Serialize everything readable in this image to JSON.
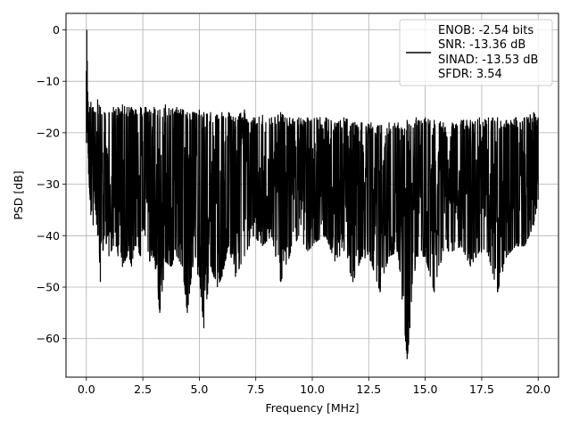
{
  "chart_data": {
    "type": "line",
    "title": "",
    "xlabel": "Frequency [MHz]",
    "ylabel": "PSD [dB]",
    "xlim": [
      -0.9,
      20.9
    ],
    "ylim": [
      -67.5,
      3.2
    ],
    "xticks": [
      0.0,
      2.5,
      5.0,
      7.5,
      10.0,
      12.5,
      15.0,
      17.5,
      20.0
    ],
    "xtick_labels": [
      "0.0",
      "2.5",
      "5.0",
      "7.5",
      "10.0",
      "12.5",
      "15.0",
      "17.5",
      "20.0"
    ],
    "yticks": [
      0,
      -10,
      -20,
      -30,
      -40,
      -50,
      -60
    ],
    "ytick_labels": [
      "0",
      "−10",
      "−20",
      "−30",
      "−40",
      "−50",
      "−60"
    ],
    "grid": true,
    "legend_position": "top-right",
    "series": [
      {
        "color": "#000000",
        "legend_lines": [
          "ENOB: -2.54 bits",
          "SNR: -13.36 dB",
          "SINAD: -13.53 dB",
          "SFDR: 3.54"
        ],
        "x": [
          0.0,
          0.02,
          0.04,
          0.06,
          0.08,
          0.1,
          0.15,
          0.2,
          0.3,
          0.4,
          0.5,
          0.62,
          0.8,
          1.0,
          1.2,
          1.4,
          1.6,
          1.8,
          2.0,
          2.2,
          2.4,
          2.6,
          2.8,
          3.0,
          3.25,
          3.5,
          3.75,
          4.0,
          4.25,
          4.47,
          4.7,
          5.0,
          5.2,
          5.5,
          5.8,
          6.0,
          6.3,
          6.6,
          7.0,
          7.4,
          7.8,
          8.2,
          8.6,
          9.0,
          9.4,
          9.8,
          10.2,
          10.6,
          11.0,
          11.4,
          11.8,
          12.2,
          12.6,
          13.0,
          13.4,
          13.8,
          14.2,
          14.6,
          15.0,
          15.4,
          15.8,
          16.2,
          16.6,
          17.0,
          17.4,
          17.8,
          18.2,
          18.6,
          19.0,
          19.4,
          19.8,
          20.0
        ],
        "upper": [
          -8,
          0,
          -6,
          -12,
          -14,
          -16,
          -15,
          -14,
          -15,
          -16,
          -13.5,
          -15,
          -16,
          -16,
          -15,
          -15,
          -14.5,
          -15,
          -15,
          -15.5,
          -15,
          -15,
          -15.5,
          -15,
          -15.5,
          -14.5,
          -15.5,
          -15,
          -15.5,
          -16,
          -16,
          -15.5,
          -16,
          -16,
          -16.5,
          -16,
          -16,
          -17,
          -15.5,
          -17,
          -16.5,
          -17,
          -16,
          -17,
          -17,
          -17,
          -17,
          -17,
          -18,
          -17,
          -18,
          -18,
          -18,
          -18.5,
          -18,
          -18,
          -17.5,
          -17,
          -17,
          -17.5,
          -18,
          -18,
          -17.5,
          -17.5,
          -17,
          -17,
          -17,
          -17.5,
          -17,
          -17,
          -16,
          -17
        ],
        "lower": [
          -22,
          -20,
          -18,
          -22,
          -24,
          -28,
          -32,
          -36,
          -38,
          -35,
          -40,
          -49,
          -40,
          -44,
          -42,
          -44,
          -46,
          -44,
          -46,
          -42,
          -44,
          -40,
          -45,
          -44,
          -55,
          -45,
          -46,
          -44,
          -46,
          -55,
          -46,
          -48,
          -58,
          -46,
          -50,
          -48,
          -42,
          -48,
          -44,
          -40,
          -42,
          -40,
          -49,
          -44,
          -40,
          -43,
          -41,
          -40,
          -45,
          -43,
          -49,
          -44,
          -45,
          -51,
          -44,
          -43,
          -64,
          -44,
          -44,
          -51,
          -43,
          -43,
          -42,
          -46,
          -43,
          -44,
          -51,
          -44,
          -42,
          -42,
          -38,
          -33
        ]
      }
    ]
  }
}
